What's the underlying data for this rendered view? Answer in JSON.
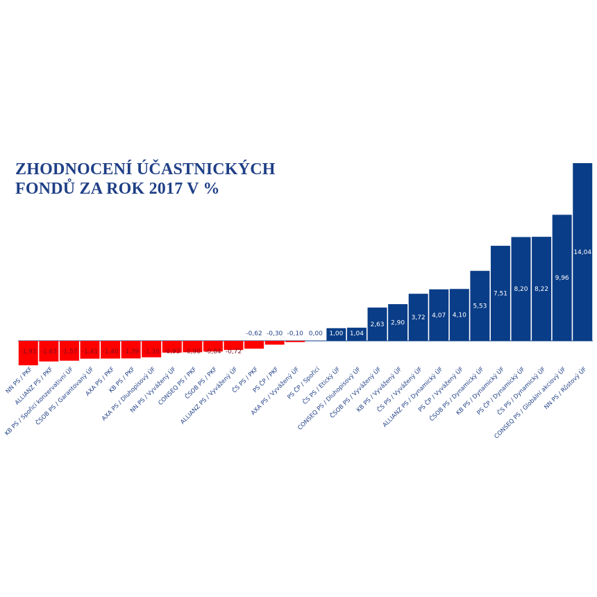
{
  "title_line1": "ZHODNOCENÍ ÚČASTNICKÝCH",
  "title_line2": "FONDŮ ZA ROK 2017 V %",
  "chart_data": {
    "type": "bar",
    "title": "ZHODNOCENÍ ÚČASTNICKÝCH FONDŮ ZA ROK 2017 V %",
    "categories": [
      "NN PS / PKF",
      "ALLIANZ PS / PKF",
      "KB PS / Spořicí konzervativní ÚF",
      "ČSOB PS / Garantovaný ÚF",
      "AXA PS / PKF",
      "KB PS / PKF",
      "AXA PS / Dluhopisový ÚF",
      "NN PS / Vyvážený ÚF",
      "CONSEQ PS / PKF",
      "ČSOB PS / PKF",
      "ALLIANZ PS / Vyvážený ÚF",
      "ČS PS / PKF",
      "PS ČP / PKF",
      "AXA PS / Vyvážený ÚF",
      "PS ČP / Spořicí",
      "ČS PS / Etický ÚF",
      "CONSEQ PS / Dluhopisový ÚF",
      "ČSOB PS / Vyvážený ÚF",
      "KB PS / Vyvážený ÚF",
      "ČS PS / Vyvážený ÚF",
      "ALLIANZ PS / Dynamický ÚF",
      "PS ČP / Vyvážený ÚF",
      "ČSOB PS / Dynamický ÚF",
      "KB PS / Dynamický ÚF",
      "PS ČP / Dynamický ÚF",
      "ČS PS / Dynamický ÚF",
      "CONSEQ PS / Globální akciový ÚF",
      "NN PS / Růstový ÚF"
    ],
    "values": [
      -1.93,
      -1.63,
      -1.57,
      -1.41,
      -1.4,
      -1.39,
      -1.3,
      -0.93,
      -0.9,
      -0.84,
      -0.72,
      -0.62,
      -0.3,
      -0.1,
      0.0,
      1.0,
      1.04,
      2.63,
      2.9,
      3.72,
      4.07,
      4.1,
      5.53,
      7.51,
      8.2,
      8.22,
      9.96,
      14.04
    ],
    "value_labels": [
      "-1,93",
      "-1,63",
      "-1,57",
      "-1,41",
      "-1,40",
      "-1,39",
      "-1,30",
      "-0,93",
      "-0,90",
      "-0,84",
      "-0,72",
      "-0,62",
      "-0,30",
      "-0,10",
      "0,00",
      "1,00",
      "1,04",
      "2,63",
      "2,90",
      "3,72",
      "4,07",
      "4,10",
      "5,53",
      "7,51",
      "8,20",
      "8,22",
      "9,96",
      "14,04"
    ],
    "colors": {
      "positive": "#0a3d87",
      "negative": "#ff0000",
      "label_on_negative": "#7a1020",
      "label_on_positive": "#ffffff",
      "label_outside": "#1f3f86"
    },
    "ylim": [
      -2.0,
      14.04
    ],
    "grid": false,
    "legend": "none",
    "xlabel": "",
    "ylabel": ""
  }
}
